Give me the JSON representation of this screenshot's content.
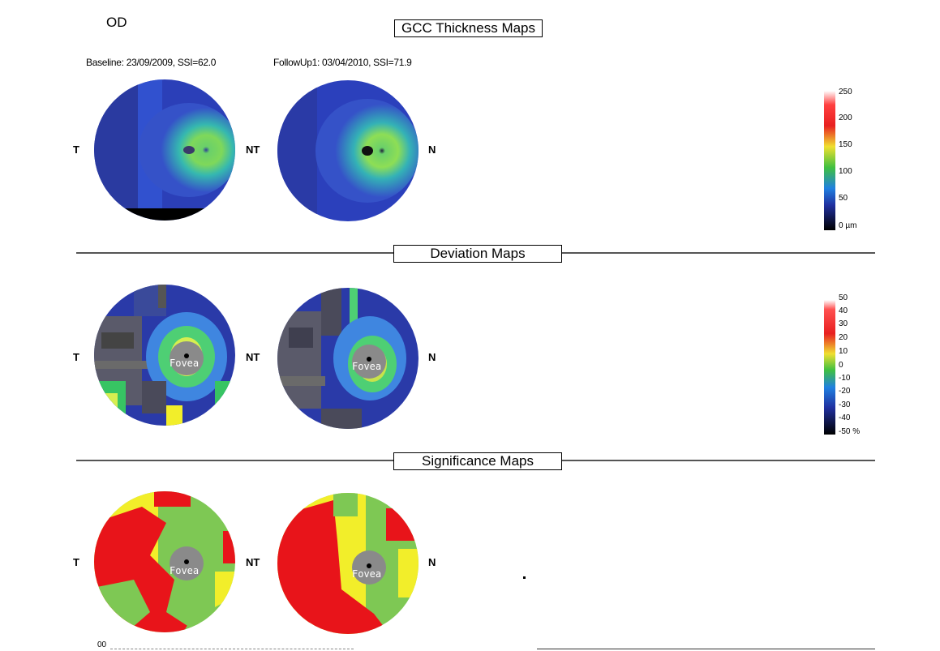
{
  "eye": "OD",
  "sections": {
    "thickness": "GCC Thickness Maps",
    "deviation": "Deviation Maps",
    "significance": "Significance Maps"
  },
  "scans": {
    "baseline": "Baseline: 23/09/2009, SSI=62.0",
    "followup": "FollowUp1: 03/04/2010, SSI=71.9"
  },
  "side_labels": {
    "left": "T",
    "middle": "NT",
    "right": "N"
  },
  "fovea_label": "Fovea",
  "thickness_scale": [
    "250",
    "200",
    "150",
    "100",
    "50",
    "0 µm"
  ],
  "deviation_scale": [
    "50",
    "40",
    "30",
    "20",
    "10",
    "0",
    "-10",
    "-20",
    "-30",
    "-40",
    "-50 %"
  ],
  "bottom_marker": "00",
  "colors": {
    "low": "#1a2a8a",
    "mid": "#3d7fe0",
    "normal": "#37c463",
    "high": "#c8e34a",
    "sig_red": "#e8141a",
    "sig_yellow": "#f2ee2a",
    "sig_green": "#7ec854",
    "fovea_gray": "#8a8a8a"
  }
}
